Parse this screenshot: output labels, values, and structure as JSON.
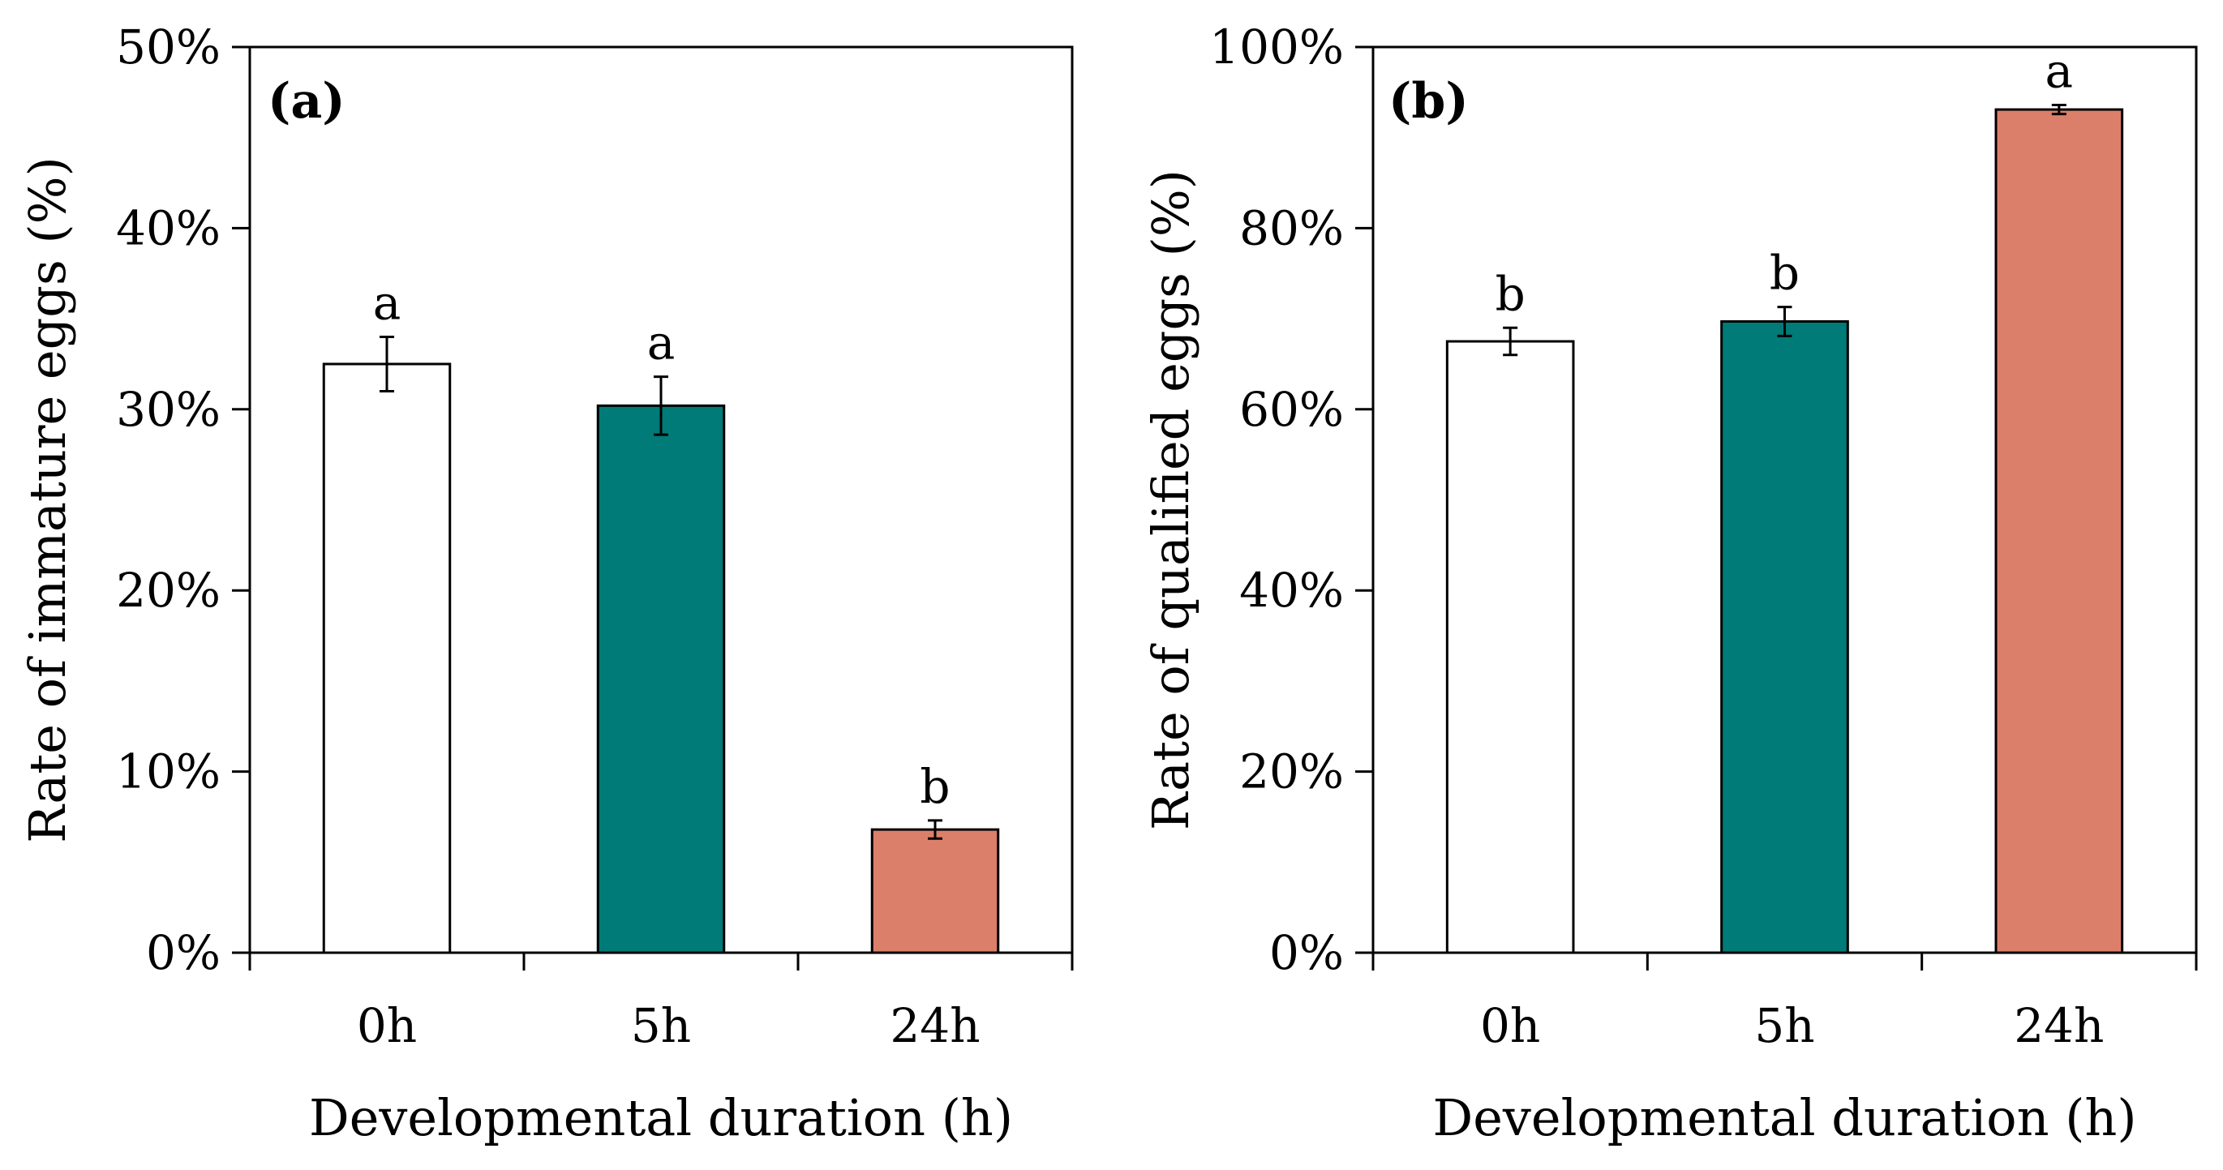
{
  "chart_data": [
    {
      "type": "bar",
      "panel_label": "(a)",
      "categories": [
        "0h",
        "5h",
        "24h"
      ],
      "values": [
        32.5,
        30.2,
        6.8
      ],
      "errors": [
        1.5,
        1.6,
        0.5
      ],
      "significance": [
        "a",
        "a",
        "b"
      ],
      "colors": [
        "#ffffff",
        "#007b78",
        "#dc7f6a"
      ],
      "xlabel": "Developmental duration (h)",
      "ylabel": "Rate of immature eggs (%)",
      "ylim": [
        0,
        50
      ],
      "yticks": [
        0,
        10,
        20,
        30,
        40,
        50
      ],
      "ytick_labels": [
        "0%",
        "10%",
        "20%",
        "30%",
        "40%",
        "50%"
      ],
      "grid": false
    },
    {
      "type": "bar",
      "panel_label": "(b)",
      "categories": [
        "0h",
        "5h",
        "24h"
      ],
      "values": [
        67.5,
        69.7,
        93.1
      ],
      "errors": [
        1.5,
        1.6,
        0.5
      ],
      "significance": [
        "b",
        "b",
        "a"
      ],
      "colors": [
        "#ffffff",
        "#007b78",
        "#dc7f6a"
      ],
      "xlabel": "Developmental duration (h)",
      "ylabel": "Rate of qualified eggs (%)",
      "ylim": [
        0,
        100
      ],
      "yticks": [
        0,
        20,
        40,
        60,
        80,
        100
      ],
      "ytick_labels": [
        "0%",
        "20%",
        "40%",
        "60%",
        "80%",
        "100%"
      ],
      "grid": false
    }
  ]
}
